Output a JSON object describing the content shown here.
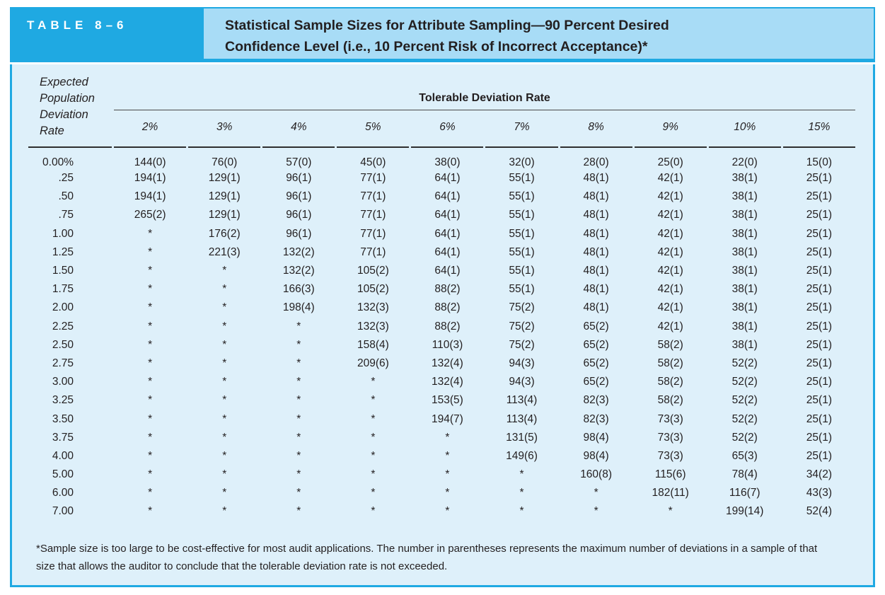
{
  "colors": {
    "accent_blue": "#1FA9E2",
    "band_blue": "#A8DCF6",
    "panel_blue": "#DEF0FA",
    "text_dark": "#231F20"
  },
  "header": {
    "table_label": "TABLE 8–6",
    "title_line1": "Statistical Sample Sizes for Attribute Sampling—90 Percent Desired",
    "title_line2": "Confidence Level (i.e., 10 Percent Risk of Incorrect Acceptance)*"
  },
  "table": {
    "row_header": {
      "line1": "Expected",
      "line2": "Population",
      "line3": "Deviation",
      "line4": "Rate"
    },
    "group_header": "Tolerable Deviation Rate",
    "columns": [
      "2%",
      "3%",
      "4%",
      "5%",
      "6%",
      "7%",
      "8%",
      "9%",
      "10%",
      "15%"
    ],
    "rows": [
      {
        "label": "0.00%",
        "values": [
          "144(0)",
          "76(0)",
          "57(0)",
          "45(0)",
          "38(0)",
          "32(0)",
          "28(0)",
          "25(0)",
          "22(0)",
          "15(0)"
        ]
      },
      {
        "label": ".25",
        "values": [
          "194(1)",
          "129(1)",
          "96(1)",
          "77(1)",
          "64(1)",
          "55(1)",
          "48(1)",
          "42(1)",
          "38(1)",
          "25(1)"
        ]
      },
      {
        "label": ".50",
        "values": [
          "194(1)",
          "129(1)",
          "96(1)",
          "77(1)",
          "64(1)",
          "55(1)",
          "48(1)",
          "42(1)",
          "38(1)",
          "25(1)"
        ]
      },
      {
        "label": ".75",
        "values": [
          "265(2)",
          "129(1)",
          "96(1)",
          "77(1)",
          "64(1)",
          "55(1)",
          "48(1)",
          "42(1)",
          "38(1)",
          "25(1)"
        ]
      },
      {
        "label": "1.00",
        "values": [
          "*",
          "176(2)",
          "96(1)",
          "77(1)",
          "64(1)",
          "55(1)",
          "48(1)",
          "42(1)",
          "38(1)",
          "25(1)"
        ]
      },
      {
        "label": "1.25",
        "values": [
          "*",
          "221(3)",
          "132(2)",
          "77(1)",
          "64(1)",
          "55(1)",
          "48(1)",
          "42(1)",
          "38(1)",
          "25(1)"
        ]
      },
      {
        "label": "1.50",
        "values": [
          "*",
          "*",
          "132(2)",
          "105(2)",
          "64(1)",
          "55(1)",
          "48(1)",
          "42(1)",
          "38(1)",
          "25(1)"
        ]
      },
      {
        "label": "1.75",
        "values": [
          "*",
          "*",
          "166(3)",
          "105(2)",
          "88(2)",
          "55(1)",
          "48(1)",
          "42(1)",
          "38(1)",
          "25(1)"
        ]
      },
      {
        "label": "2.00",
        "values": [
          "*",
          "*",
          "198(4)",
          "132(3)",
          "88(2)",
          "75(2)",
          "48(1)",
          "42(1)",
          "38(1)",
          "25(1)"
        ]
      },
      {
        "label": "2.25",
        "values": [
          "*",
          "*",
          "*",
          "132(3)",
          "88(2)",
          "75(2)",
          "65(2)",
          "42(1)",
          "38(1)",
          "25(1)"
        ]
      },
      {
        "label": "2.50",
        "values": [
          "*",
          "*",
          "*",
          "158(4)",
          "110(3)",
          "75(2)",
          "65(2)",
          "58(2)",
          "38(1)",
          "25(1)"
        ]
      },
      {
        "label": "2.75",
        "values": [
          "*",
          "*",
          "*",
          "209(6)",
          "132(4)",
          "94(3)",
          "65(2)",
          "58(2)",
          "52(2)",
          "25(1)"
        ]
      },
      {
        "label": "3.00",
        "values": [
          "*",
          "*",
          "*",
          "*",
          "132(4)",
          "94(3)",
          "65(2)",
          "58(2)",
          "52(2)",
          "25(1)"
        ]
      },
      {
        "label": "3.25",
        "values": [
          "*",
          "*",
          "*",
          "*",
          "153(5)",
          "113(4)",
          "82(3)",
          "58(2)",
          "52(2)",
          "25(1)"
        ]
      },
      {
        "label": "3.50",
        "values": [
          "*",
          "*",
          "*",
          "*",
          "194(7)",
          "113(4)",
          "82(3)",
          "73(3)",
          "52(2)",
          "25(1)"
        ]
      },
      {
        "label": "3.75",
        "values": [
          "*",
          "*",
          "*",
          "*",
          "*",
          "131(5)",
          "98(4)",
          "73(3)",
          "52(2)",
          "25(1)"
        ]
      },
      {
        "label": "4.00",
        "values": [
          "*",
          "*",
          "*",
          "*",
          "*",
          "149(6)",
          "98(4)",
          "73(3)",
          "65(3)",
          "25(1)"
        ]
      },
      {
        "label": "5.00",
        "values": [
          "*",
          "*",
          "*",
          "*",
          "*",
          "*",
          "160(8)",
          "115(6)",
          "78(4)",
          "34(2)"
        ]
      },
      {
        "label": "6.00",
        "values": [
          "*",
          "*",
          "*",
          "*",
          "*",
          "*",
          "*",
          "182(11)",
          "116(7)",
          "43(3)"
        ]
      },
      {
        "label": "7.00",
        "values": [
          "*",
          "*",
          "*",
          "*",
          "*",
          "*",
          "*",
          "*",
          "199(14)",
          "52(4)"
        ]
      }
    ]
  },
  "footnote": "*Sample size is too large to be cost-effective for most audit applications. The number in parentheses represents the maximum number of deviations in a sample of that size that allows the auditor to conclude that the tolerable deviation rate is not exceeded."
}
